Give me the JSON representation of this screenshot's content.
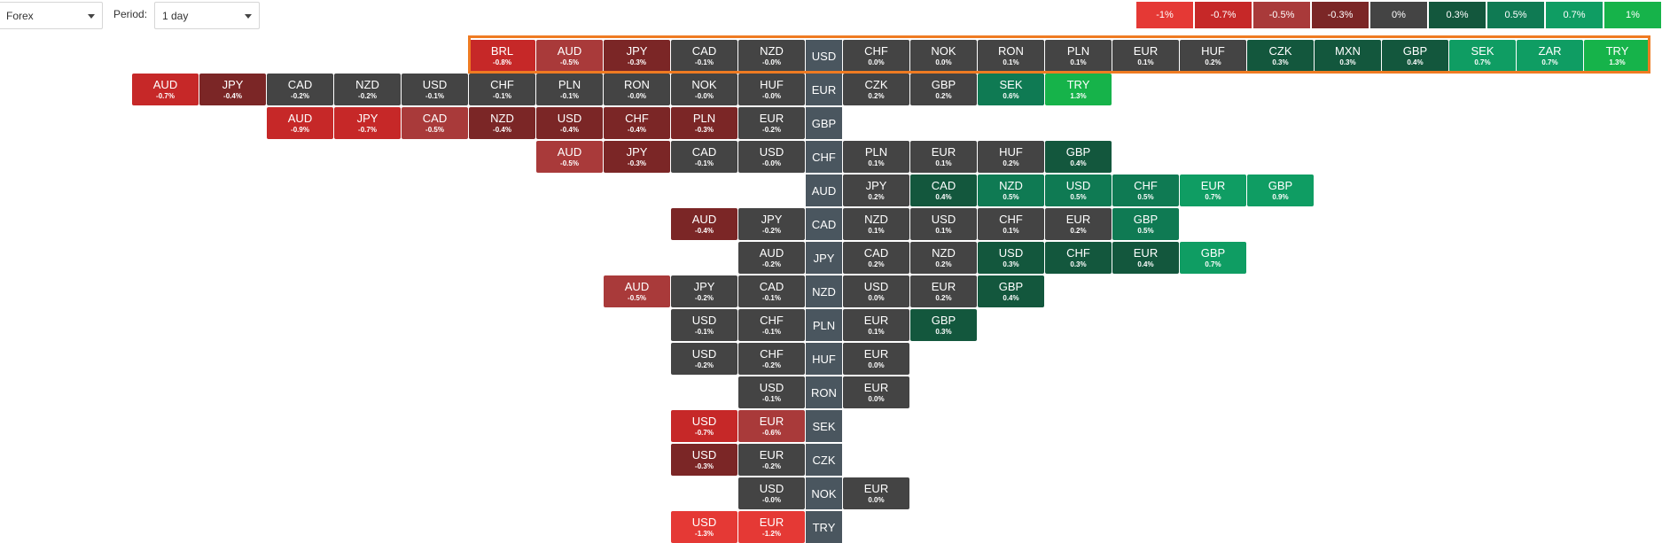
{
  "controls": {
    "market_value": "Forex",
    "period_label": "Period:",
    "period_value": "1 day"
  },
  "legend": [
    {
      "label": "-1%",
      "color": "#e53935"
    },
    {
      "label": "-0.7%",
      "color": "#c62828"
    },
    {
      "label": "-0.5%",
      "color": "#a93a3a"
    },
    {
      "label": "-0.3%",
      "color": "#7b2626"
    },
    {
      "label": "0%",
      "color": "#444444"
    },
    {
      "label": "0.3%",
      "color": "#13573d"
    },
    {
      "label": "0.5%",
      "color": "#0f7a53"
    },
    {
      "label": "0.7%",
      "color": "#0f9d63"
    },
    {
      "label": "1%",
      "color": "#16b34a"
    }
  ],
  "highlighted_base": "USD",
  "rows": [
    {
      "base": "USD",
      "left": [
        [
          "NZD",
          "-0.0%"
        ],
        [
          "CAD",
          "-0.1%"
        ],
        [
          "JPY",
          "-0.3%"
        ],
        [
          "AUD",
          "-0.5%"
        ],
        [
          "BRL",
          "-0.8%"
        ]
      ],
      "right": [
        [
          "CHF",
          "0.0%"
        ],
        [
          "NOK",
          "0.0%"
        ],
        [
          "RON",
          "0.1%"
        ],
        [
          "PLN",
          "0.1%"
        ],
        [
          "EUR",
          "0.1%"
        ],
        [
          "HUF",
          "0.2%"
        ],
        [
          "CZK",
          "0.3%"
        ],
        [
          "MXN",
          "0.3%"
        ],
        [
          "GBP",
          "0.4%"
        ],
        [
          "SEK",
          "0.7%"
        ],
        [
          "ZAR",
          "0.7%"
        ],
        [
          "TRY",
          "1.3%"
        ]
      ]
    },
    {
      "base": "EUR",
      "left": [
        [
          "HUF",
          "-0.0%"
        ],
        [
          "NOK",
          "-0.0%"
        ],
        [
          "RON",
          "-0.0%"
        ],
        [
          "PLN",
          "-0.1%"
        ],
        [
          "CHF",
          "-0.1%"
        ],
        [
          "USD",
          "-0.1%"
        ],
        [
          "NZD",
          "-0.2%"
        ],
        [
          "CAD",
          "-0.2%"
        ],
        [
          "JPY",
          "-0.4%"
        ],
        [
          "AUD",
          "-0.7%"
        ]
      ],
      "right": [
        [
          "CZK",
          "0.2%"
        ],
        [
          "GBP",
          "0.2%"
        ],
        [
          "SEK",
          "0.6%"
        ],
        [
          "TRY",
          "1.3%"
        ]
      ]
    },
    {
      "base": "GBP",
      "left": [
        [
          "EUR",
          "-0.2%"
        ],
        [
          "PLN",
          "-0.3%"
        ],
        [
          "CHF",
          "-0.4%"
        ],
        [
          "USD",
          "-0.4%"
        ],
        [
          "NZD",
          "-0.4%"
        ],
        [
          "CAD",
          "-0.5%"
        ],
        [
          "JPY",
          "-0.7%"
        ],
        [
          "AUD",
          "-0.9%"
        ]
      ],
      "right": []
    },
    {
      "base": "CHF",
      "left": [
        [
          "USD",
          "-0.0%"
        ],
        [
          "CAD",
          "-0.1%"
        ],
        [
          "JPY",
          "-0.3%"
        ],
        [
          "AUD",
          "-0.5%"
        ]
      ],
      "right": [
        [
          "PLN",
          "0.1%"
        ],
        [
          "EUR",
          "0.1%"
        ],
        [
          "HUF",
          "0.2%"
        ],
        [
          "GBP",
          "0.4%"
        ]
      ]
    },
    {
      "base": "AUD",
      "left": [],
      "right": [
        [
          "JPY",
          "0.2%"
        ],
        [
          "CAD",
          "0.4%"
        ],
        [
          "NZD",
          "0.5%"
        ],
        [
          "USD",
          "0.5%"
        ],
        [
          "CHF",
          "0.5%"
        ],
        [
          "EUR",
          "0.7%"
        ],
        [
          "GBP",
          "0.9%"
        ]
      ]
    },
    {
      "base": "CAD",
      "left": [
        [
          "JPY",
          "-0.2%"
        ],
        [
          "AUD",
          "-0.4%"
        ]
      ],
      "right": [
        [
          "NZD",
          "0.1%"
        ],
        [
          "USD",
          "0.1%"
        ],
        [
          "CHF",
          "0.1%"
        ],
        [
          "EUR",
          "0.2%"
        ],
        [
          "GBP",
          "0.5%"
        ]
      ]
    },
    {
      "base": "JPY",
      "left": [
        [
          "AUD",
          "-0.2%"
        ]
      ],
      "right": [
        [
          "CAD",
          "0.2%"
        ],
        [
          "NZD",
          "0.2%"
        ],
        [
          "USD",
          "0.3%"
        ],
        [
          "CHF",
          "0.3%"
        ],
        [
          "EUR",
          "0.4%"
        ],
        [
          "GBP",
          "0.7%"
        ]
      ]
    },
    {
      "base": "NZD",
      "left": [
        [
          "CAD",
          "-0.1%"
        ],
        [
          "JPY",
          "-0.2%"
        ],
        [
          "AUD",
          "-0.5%"
        ]
      ],
      "right": [
        [
          "USD",
          "0.0%"
        ],
        [
          "EUR",
          "0.2%"
        ],
        [
          "GBP",
          "0.4%"
        ]
      ]
    },
    {
      "base": "PLN",
      "left": [
        [
          "CHF",
          "-0.1%"
        ],
        [
          "USD",
          "-0.1%"
        ]
      ],
      "right": [
        [
          "EUR",
          "0.1%"
        ],
        [
          "GBP",
          "0.3%"
        ]
      ]
    },
    {
      "base": "HUF",
      "left": [
        [
          "CHF",
          "-0.2%"
        ],
        [
          "USD",
          "-0.2%"
        ]
      ],
      "right": [
        [
          "EUR",
          "0.0%"
        ]
      ]
    },
    {
      "base": "RON",
      "left": [
        [
          "USD",
          "-0.1%"
        ]
      ],
      "right": [
        [
          "EUR",
          "0.0%"
        ]
      ]
    },
    {
      "base": "SEK",
      "left": [
        [
          "EUR",
          "-0.6%"
        ],
        [
          "USD",
          "-0.7%"
        ]
      ],
      "right": []
    },
    {
      "base": "CZK",
      "left": [
        [
          "EUR",
          "-0.2%"
        ],
        [
          "USD",
          "-0.3%"
        ]
      ],
      "right": []
    },
    {
      "base": "NOK",
      "left": [
        [
          "USD",
          "-0.0%"
        ]
      ],
      "right": [
        [
          "EUR",
          "0.0%"
        ]
      ]
    },
    {
      "base": "TRY",
      "left": [
        [
          "EUR",
          "-1.2%"
        ],
        [
          "USD",
          "-1.3%"
        ]
      ],
      "right": []
    }
  ]
}
